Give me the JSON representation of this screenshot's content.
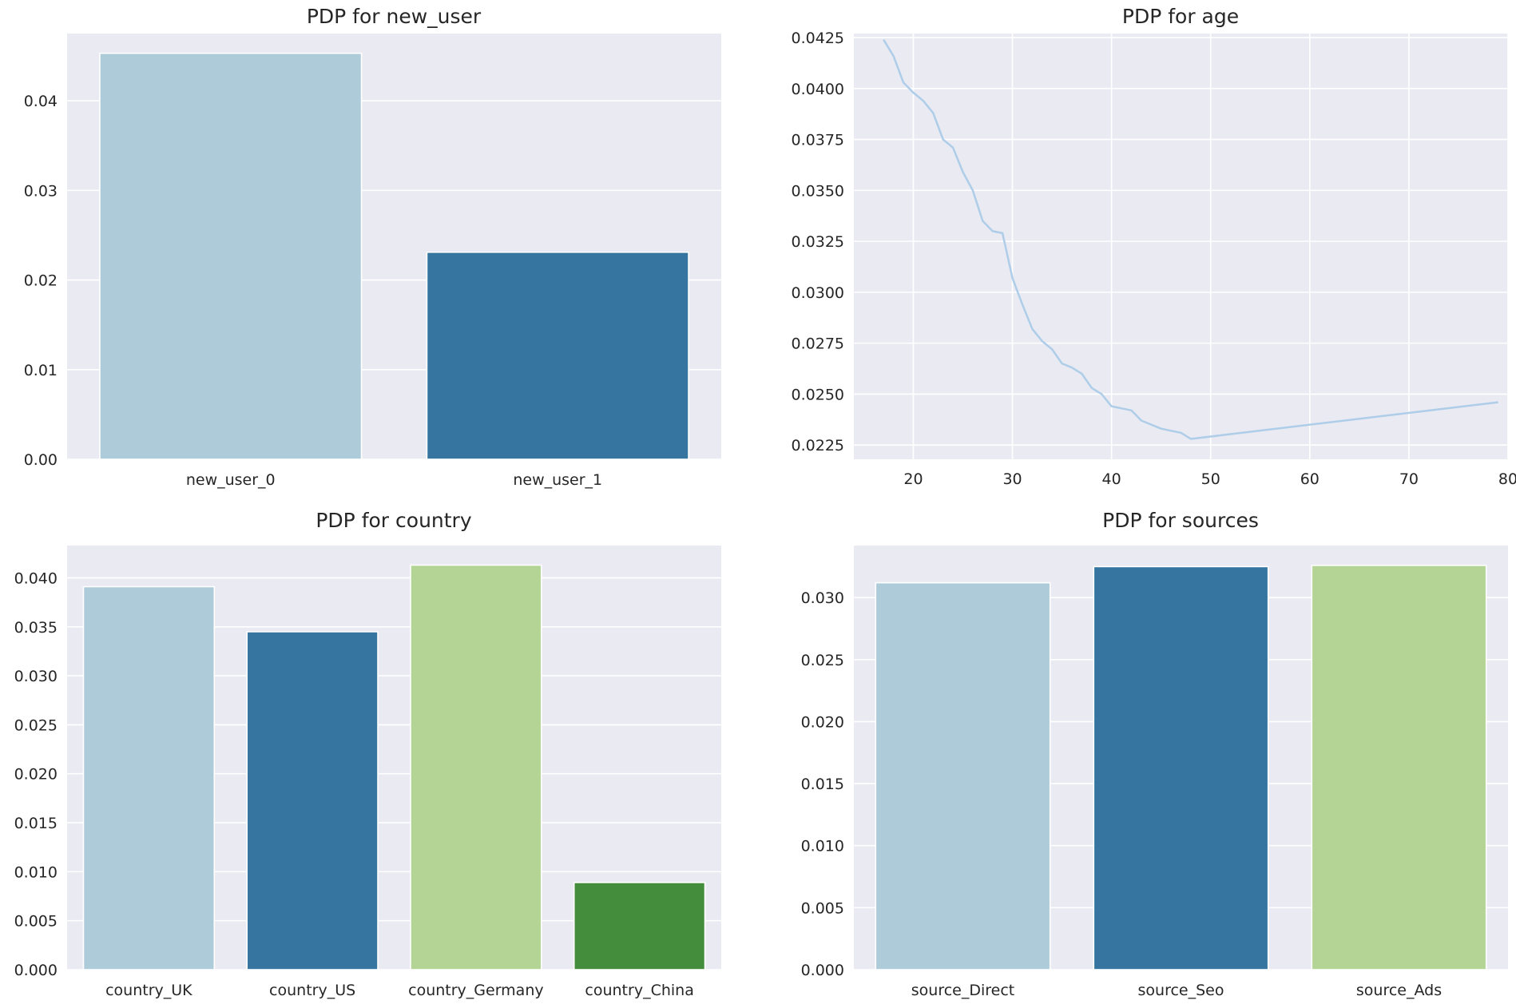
{
  "chart_data": [
    {
      "id": "new_user",
      "type": "bar",
      "title": "PDP for new_user",
      "categories": [
        "new_user_0",
        "new_user_1"
      ],
      "values": [
        0.0453,
        0.0231
      ],
      "colors": [
        "#aecbd9",
        "#35759f"
      ],
      "ylim": [
        0,
        0.0475
      ],
      "yticks": [
        0.0,
        0.01,
        0.02,
        0.03,
        0.04
      ],
      "ytick_labels": [
        "0.00",
        "0.01",
        "0.02",
        "0.03",
        "0.04"
      ],
      "grid": true
    },
    {
      "id": "age",
      "type": "line",
      "title": "PDP for age",
      "x": [
        17,
        18,
        19,
        20,
        21,
        22,
        23,
        24,
        25,
        26,
        27,
        28,
        29,
        30,
        31,
        32,
        33,
        34,
        35,
        36,
        37,
        38,
        39,
        40,
        41,
        42,
        43,
        44,
        45,
        46,
        47,
        48,
        79
      ],
      "y": [
        0.0424,
        0.0416,
        0.0403,
        0.0398,
        0.0394,
        0.0388,
        0.0375,
        0.0371,
        0.0359,
        0.035,
        0.0335,
        0.033,
        0.0329,
        0.0307,
        0.0294,
        0.0282,
        0.0276,
        0.0272,
        0.0265,
        0.0263,
        0.026,
        0.0253,
        0.025,
        0.0244,
        0.0243,
        0.0242,
        0.0237,
        0.0235,
        0.0233,
        0.0232,
        0.0231,
        0.0228,
        0.0246
      ],
      "color": "#aecde8",
      "xlim": [
        14,
        80
      ],
      "ylim": [
        0.0218,
        0.0427
      ],
      "xticks": [
        20,
        30,
        40,
        50,
        60,
        70,
        80
      ],
      "xtick_labels": [
        "20",
        "30",
        "40",
        "50",
        "60",
        "70",
        "80"
      ],
      "yticks": [
        0.0225,
        0.025,
        0.0275,
        0.03,
        0.0325,
        0.035,
        0.0375,
        0.04,
        0.0425
      ],
      "ytick_labels": [
        "0.0225",
        "0.0250",
        "0.0275",
        "0.0300",
        "0.0325",
        "0.0350",
        "0.0375",
        "0.0400",
        "0.0425"
      ],
      "grid": true
    },
    {
      "id": "country",
      "type": "bar",
      "title": "PDP for country",
      "categories": [
        "country_UK",
        "country_US",
        "country_Germany",
        "country_China"
      ],
      "values": [
        0.0391,
        0.0345,
        0.0413,
        0.0089
      ],
      "colors": [
        "#aecbd9",
        "#35759f",
        "#b3d495",
        "#438d3c"
      ],
      "ylim": [
        0,
        0.0433
      ],
      "yticks": [
        0.0,
        0.005,
        0.01,
        0.015,
        0.02,
        0.025,
        0.03,
        0.035,
        0.04
      ],
      "ytick_labels": [
        "0.000",
        "0.005",
        "0.010",
        "0.015",
        "0.020",
        "0.025",
        "0.030",
        "0.035",
        "0.040"
      ],
      "grid": true
    },
    {
      "id": "sources",
      "type": "bar",
      "title": "PDP for sources",
      "categories": [
        "source_Direct",
        "source_Seo",
        "source_Ads"
      ],
      "values": [
        0.0312,
        0.0325,
        0.0326
      ],
      "colors": [
        "#aecbd9",
        "#35759f",
        "#b3d495"
      ],
      "ylim": [
        0,
        0.0342
      ],
      "yticks": [
        0.0,
        0.005,
        0.01,
        0.015,
        0.02,
        0.025,
        0.03
      ],
      "ytick_labels": [
        "0.000",
        "0.005",
        "0.010",
        "0.015",
        "0.020",
        "0.025",
        "0.030"
      ],
      "grid": true
    }
  ]
}
